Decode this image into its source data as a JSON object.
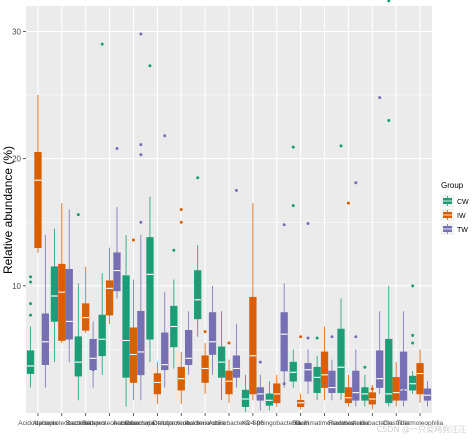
{
  "chart_data": {
    "type": "boxplot",
    "xlabel": "",
    "ylabel": "Relative abundance (%)",
    "y_ticks": [
      10,
      20,
      30
    ],
    "ylim": [
      0,
      32
    ],
    "grid": true,
    "legend": {
      "title": "Group",
      "placement": "right",
      "entries": [
        "CW",
        "IW",
        "TW"
      ]
    },
    "series": [
      {
        "name": "CW",
        "color": "#1b9e77"
      },
      {
        "name": "IW",
        "color": "#d95f02"
      },
      {
        "name": "TW",
        "color": "#7570b3"
      }
    ],
    "categories": [
      "Acidobacteria",
      "Alphaproteobacteria",
      "Bacteroidetes",
      "Betaproteobacteria",
      "Actinobacteria",
      "Gammaproteobacteria",
      "Deltaproteobacteria",
      "Acidimicrobiia",
      "Actinobacteria",
      "KD4-96",
      "Sphingobacteriia",
      "Bacilli",
      "Gemmatimonadetes",
      "Flavobacteriia",
      "Acidobacteriia",
      "Clostridia",
      "Thermoleophilia"
    ],
    "boxes": [
      {
        "cat": 0,
        "g": 0,
        "min": 2.0,
        "q1": 3.1,
        "med": 3.7,
        "q3": 4.9,
        "max": 6.8,
        "outliers": [
          7.7,
          8.6,
          10.3,
          10.7
        ]
      },
      {
        "cat": 0,
        "g": 1,
        "min": 12.6,
        "q1": 13.0,
        "med": 18.3,
        "q3": 20.5,
        "max": 25.0,
        "outliers": []
      },
      {
        "cat": 0,
        "g": 2,
        "min": 2.0,
        "q1": 3.8,
        "med": 5.6,
        "q3": 7.8,
        "max": 14.0,
        "outliers": []
      },
      {
        "cat": 1,
        "g": 0,
        "min": 4.0,
        "q1": 7.2,
        "med": 9.2,
        "q3": 11.5,
        "max": 14.5,
        "outliers": []
      },
      {
        "cat": 1,
        "g": 1,
        "min": 5.5,
        "q1": 5.7,
        "med": 9.5,
        "q3": 11.7,
        "max": 16.5,
        "outliers": []
      },
      {
        "cat": 1,
        "g": 2,
        "min": 4.0,
        "q1": 5.8,
        "med": 7.2,
        "q3": 11.3,
        "max": 16.0,
        "outliers": []
      },
      {
        "cat": 2,
        "g": 0,
        "min": 1.0,
        "q1": 2.9,
        "med": 4.0,
        "q3": 6.0,
        "max": 10.2,
        "outliers": [
          15.6
        ]
      },
      {
        "cat": 2,
        "g": 1,
        "min": 6.3,
        "q1": 6.5,
        "med": 7.5,
        "q3": 8.6,
        "max": 11.5,
        "outliers": []
      },
      {
        "cat": 2,
        "g": 2,
        "min": 2.0,
        "q1": 3.4,
        "med": 4.3,
        "q3": 5.8,
        "max": 7.2,
        "outliers": [
          3.4,
          3.9
        ]
      },
      {
        "cat": 3,
        "g": 0,
        "min": 3.0,
        "q1": 4.5,
        "med": 5.8,
        "q3": 7.7,
        "max": 11.0,
        "outliers": [
          29.0
        ]
      },
      {
        "cat": 3,
        "g": 1,
        "min": 7.0,
        "q1": 7.7,
        "med": 9.8,
        "q3": 10.4,
        "max": 13.0,
        "outliers": []
      },
      {
        "cat": 3,
        "g": 2,
        "min": 9.0,
        "q1": 9.6,
        "med": 11.2,
        "q3": 12.6,
        "max": 16.2,
        "outliers": [
          20.8
        ]
      },
      {
        "cat": 4,
        "g": 0,
        "min": 0.5,
        "q1": 2.8,
        "med": 5.7,
        "q3": 10.8,
        "max": 14.0,
        "outliers": []
      },
      {
        "cat": 4,
        "g": 1,
        "min": 1.0,
        "q1": 2.4,
        "med": 4.6,
        "q3": 6.7,
        "max": 10.5,
        "outliers": [
          13.6
        ]
      },
      {
        "cat": 4,
        "g": 2,
        "min": 1.0,
        "q1": 3.0,
        "med": 4.8,
        "q3": 8.0,
        "max": 14.0,
        "outliers": [
          20.3,
          21.1,
          29.8,
          15.0
        ]
      },
      {
        "cat": 5,
        "g": 0,
        "min": 4.0,
        "q1": 5.8,
        "med": 10.9,
        "q3": 13.8,
        "max": 17.0,
        "outliers": [
          27.3
        ]
      },
      {
        "cat": 5,
        "g": 1,
        "min": 0.7,
        "q1": 1.5,
        "med": 2.4,
        "q3": 3.1,
        "max": 4.0,
        "outliers": []
      },
      {
        "cat": 5,
        "g": 2,
        "min": 2.0,
        "q1": 3.4,
        "med": 3.8,
        "q3": 6.3,
        "max": 9.5,
        "outliers": [
          21.8
        ]
      },
      {
        "cat": 6,
        "g": 0,
        "min": 3.5,
        "q1": 5.2,
        "med": 6.8,
        "q3": 8.4,
        "max": 10.5,
        "outliers": [
          12.8
        ]
      },
      {
        "cat": 6,
        "g": 1,
        "min": 0.7,
        "q1": 1.8,
        "med": 2.7,
        "q3": 3.6,
        "max": 4.8,
        "outliers": [
          15.0,
          16.0
        ]
      },
      {
        "cat": 6,
        "g": 2,
        "min": 3.0,
        "q1": 3.8,
        "med": 4.3,
        "q3": 6.5,
        "max": 8.0,
        "outliers": []
      },
      {
        "cat": 7,
        "g": 0,
        "min": 6.0,
        "q1": 7.4,
        "med": 8.9,
        "q3": 11.2,
        "max": 13.2,
        "outliers": [
          18.5
        ]
      },
      {
        "cat": 7,
        "g": 1,
        "min": 1.5,
        "q1": 2.4,
        "med": 3.5,
        "q3": 4.5,
        "max": 5.5,
        "outliers": [
          6.4
        ]
      },
      {
        "cat": 7,
        "g": 2,
        "min": 3.0,
        "q1": 4.6,
        "med": 5.6,
        "q3": 7.9,
        "max": 10.0,
        "outliers": []
      },
      {
        "cat": 8,
        "g": 0,
        "min": 1.0,
        "q1": 2.8,
        "med": 4.0,
        "q3": 5.2,
        "max": 8.0,
        "outliers": []
      },
      {
        "cat": 8,
        "g": 1,
        "min": 0.8,
        "q1": 1.5,
        "med": 2.5,
        "q3": 3.3,
        "max": 4.2,
        "outliers": [
          5.5
        ]
      },
      {
        "cat": 8,
        "g": 2,
        "min": 2.0,
        "q1": 2.8,
        "med": 3.5,
        "q3": 4.5,
        "max": 7.0,
        "outliers": [
          17.5
        ]
      },
      {
        "cat": 9,
        "g": 0,
        "min": 0.1,
        "q1": 0.5,
        "med": 1.1,
        "q3": 1.8,
        "max": 3.0,
        "outliers": []
      },
      {
        "cat": 9,
        "g": 1,
        "min": 1.0,
        "q1": 1.5,
        "med": 4.5,
        "q3": 9.1,
        "max": 16.5,
        "outliers": []
      },
      {
        "cat": 9,
        "g": 2,
        "min": 0.2,
        "q1": 1.0,
        "med": 1.5,
        "q3": 2.0,
        "max": 3.0,
        "outliers": [
          4.0
        ]
      },
      {
        "cat": 10,
        "g": 0,
        "min": 0.2,
        "q1": 0.6,
        "med": 1.0,
        "q3": 1.5,
        "max": 2.5,
        "outliers": []
      },
      {
        "cat": 10,
        "g": 1,
        "min": 0.5,
        "q1": 0.8,
        "med": 1.5,
        "q3": 2.3,
        "max": 3.0,
        "outliers": []
      },
      {
        "cat": 10,
        "g": 2,
        "min": 2.0,
        "q1": 3.3,
        "med": 6.2,
        "q3": 7.9,
        "max": 10.2,
        "outliers": [
          2.3,
          14.8
        ]
      },
      {
        "cat": 11,
        "g": 0,
        "min": 2.0,
        "q1": 2.5,
        "med": 3.2,
        "q3": 4.0,
        "max": 5.0,
        "outliers": [
          20.9,
          16.3
        ]
      },
      {
        "cat": 11,
        "g": 1,
        "min": 0.3,
        "q1": 0.5,
        "med": 0.8,
        "q3": 1.0,
        "max": 1.5,
        "outliers": [
          6.0
        ]
      },
      {
        "cat": 11,
        "g": 2,
        "min": 1.5,
        "q1": 2.5,
        "med": 3.4,
        "q3": 3.9,
        "max": 5.0,
        "outliers": [
          14.9,
          5.9
        ]
      },
      {
        "cat": 12,
        "g": 0,
        "min": 1.0,
        "q1": 1.6,
        "med": 2.8,
        "q3": 3.6,
        "max": 4.5,
        "outliers": [
          5.9
        ]
      },
      {
        "cat": 12,
        "g": 1,
        "min": 1.0,
        "q1": 2.0,
        "med": 3.0,
        "q3": 4.8,
        "max": 6.8,
        "outliers": []
      },
      {
        "cat": 12,
        "g": 2,
        "min": 1.0,
        "q1": 1.6,
        "med": 2.0,
        "q3": 3.3,
        "max": 4.2,
        "outliers": [
          6.0
        ]
      },
      {
        "cat": 13,
        "g": 0,
        "min": 1.0,
        "q1": 1.6,
        "med": 3.6,
        "q3": 6.6,
        "max": 9.0,
        "outliers": [
          21.0
        ]
      },
      {
        "cat": 13,
        "g": 1,
        "min": 0.5,
        "q1": 0.8,
        "med": 1.2,
        "q3": 2.0,
        "max": 3.0,
        "outliers": [
          16.5
        ]
      },
      {
        "cat": 13,
        "g": 2,
        "min": 0.5,
        "q1": 1.0,
        "med": 1.6,
        "q3": 3.3,
        "max": 5.0,
        "outliers": [
          18.1,
          6.0
        ]
      },
      {
        "cat": 14,
        "g": 0,
        "min": 0.5,
        "q1": 1.0,
        "med": 1.5,
        "q3": 2.0,
        "max": 3.0,
        "outliers": [
          3.6
        ]
      },
      {
        "cat": 14,
        "g": 1,
        "min": 0.3,
        "q1": 0.7,
        "med": 1.1,
        "q3": 1.6,
        "max": 2.2,
        "outliers": [
          1.9
        ]
      },
      {
        "cat": 14,
        "g": 2,
        "min": 1.5,
        "q1": 2.0,
        "med": 2.7,
        "q3": 4.9,
        "max": 8.0,
        "outliers": [
          24.8
        ]
      },
      {
        "cat": 15,
        "g": 0,
        "min": 0.5,
        "q1": 0.8,
        "med": 1.5,
        "q3": 5.8,
        "max": 10.0,
        "outliers": [
          32.4,
          23.0
        ]
      },
      {
        "cat": 15,
        "g": 1,
        "min": 0.5,
        "q1": 1.0,
        "med": 1.6,
        "q3": 2.8,
        "max": 4.0,
        "outliers": []
      },
      {
        "cat": 15,
        "g": 2,
        "min": 0.5,
        "q1": 1.0,
        "med": 1.8,
        "q3": 4.8,
        "max": 8.0,
        "outliers": [
          1.7
        ]
      },
      {
        "cat": 16,
        "g": 0,
        "min": 1.5,
        "q1": 1.8,
        "med": 2.3,
        "q3": 2.9,
        "max": 3.3,
        "outliers": [
          10.0,
          6.1,
          5.5
        ]
      },
      {
        "cat": 16,
        "g": 1,
        "min": 0.8,
        "q1": 1.5,
        "med": 3.1,
        "q3": 3.9,
        "max": 5.0,
        "outliers": []
      },
      {
        "cat": 16,
        "g": 2,
        "min": 0.5,
        "q1": 1.0,
        "med": 1.4,
        "q3": 1.9,
        "max": 2.5,
        "outliers": []
      }
    ]
  },
  "watermark": "CSDN @一只菜鸡狗汪汪"
}
